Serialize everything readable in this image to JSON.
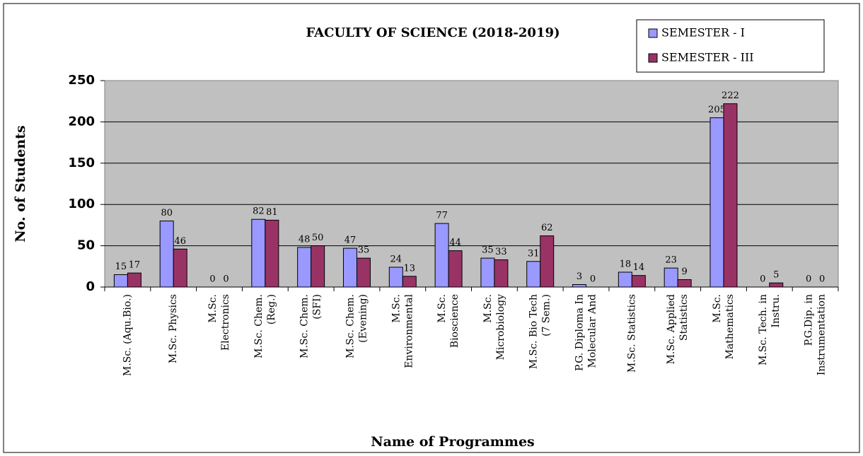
{
  "chart_data": {
    "type": "bar",
    "title": "FACULTY OF SCIENCE (2018-2019)",
    "xlabel": "Name of Programmes",
    "ylabel": "No. of Students",
    "categories": [
      [
        "M.Sc. (Aqu.Bio.)"
      ],
      [
        "M.Sc. Physics"
      ],
      [
        "M.Sc.",
        "Electronics"
      ],
      [
        "M.Sc. Chem.",
        "(Reg.)"
      ],
      [
        "M.Sc. Chem.",
        "(SFI)"
      ],
      [
        "M.Sc. Chem.",
        "(Evening)"
      ],
      [
        "M.Sc.",
        "Environmental"
      ],
      [
        "M.Sc.",
        "Bioscience"
      ],
      [
        "M.Sc.",
        "Microbiology"
      ],
      [
        "M.Sc. Bio Tech",
        "(7 Sem.)"
      ],
      [
        "P.G. Diploma In",
        "Molecular And"
      ],
      [
        "M.Sc. Statistics"
      ],
      [
        "M.Sc. Applied",
        "Statistics"
      ],
      [
        "M.Sc.",
        "Mathematics"
      ],
      [
        "M.Sc. Tech. in",
        "Instru."
      ],
      [
        "P.G.Dip. in",
        "Instrumentation"
      ]
    ],
    "series": [
      {
        "name": "SEMESTER - I",
        "color": "#9999ff",
        "values": [
          15,
          80,
          0,
          82,
          48,
          47,
          24,
          77,
          35,
          31,
          3,
          18,
          23,
          205,
          0,
          0
        ]
      },
      {
        "name": "SEMESTER - III",
        "color": "#993366",
        "values": [
          17,
          46,
          0,
          81,
          50,
          35,
          13,
          44,
          33,
          62,
          0,
          14,
          9,
          222,
          5,
          0
        ]
      }
    ],
    "ylim": [
      0,
      250
    ],
    "yticks": [
      0,
      50,
      100,
      150,
      200,
      250
    ],
    "grid": true,
    "legend": "top-right"
  }
}
